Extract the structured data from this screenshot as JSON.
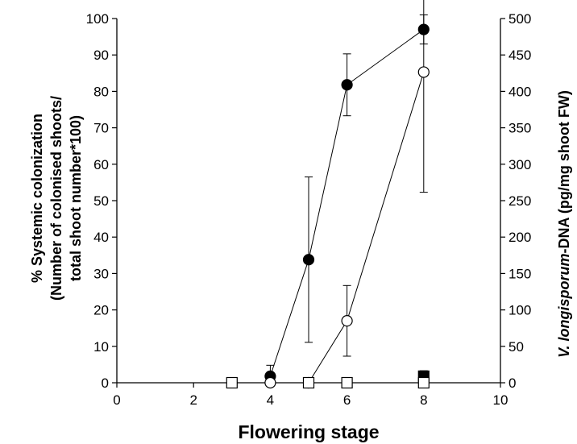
{
  "chart_data": {
    "type": "scatter",
    "title": "",
    "xlabel": "Flowering stage",
    "ylabel_left_line1": "% Systemic colonization",
    "ylabel_left_line2": "(Number of colonised shoots/",
    "ylabel_left_line3": "total shoot number*100)",
    "ylabel_right_italic": "V. longisporum",
    "ylabel_right_rest": "-DNA (pg/mg shoot FW)",
    "xlim": [
      0,
      10
    ],
    "ylim_left": [
      0,
      100
    ],
    "ylim_right": [
      0,
      500
    ],
    "x_ticks": [
      0,
      2,
      4,
      6,
      8,
      10
    ],
    "y_left_ticks": [
      0,
      10,
      20,
      30,
      40,
      50,
      60,
      70,
      80,
      90,
      100
    ],
    "y_right_ticks": [
      0,
      50,
      100,
      150,
      200,
      250,
      300,
      350,
      400,
      450,
      500
    ],
    "grid": false,
    "series": [
      {
        "marker": "filled-circle",
        "axis": "left",
        "connected": true,
        "x": [
          4,
          5,
          6,
          8
        ],
        "y": [
          1.8,
          33.8,
          81.8,
          97.0
        ],
        "err": [
          3.0,
          22.7,
          8.5,
          4.0
        ]
      },
      {
        "marker": "open-circle",
        "axis": "left",
        "connected": true,
        "x": [
          4,
          5,
          6,
          8
        ],
        "y": [
          0,
          0,
          17.0,
          85.3
        ],
        "err": [
          0,
          0,
          9.7,
          33.0
        ]
      },
      {
        "marker": "filled-square",
        "axis": "left",
        "connected": false,
        "x": [
          8
        ],
        "y": [
          1.8
        ],
        "err": [
          1.5
        ]
      },
      {
        "marker": "open-square",
        "axis": "left",
        "connected": false,
        "x": [
          3,
          5,
          6,
          8
        ],
        "y": [
          0,
          0,
          0,
          0
        ],
        "err": [
          0,
          0,
          0,
          0
        ]
      }
    ]
  }
}
